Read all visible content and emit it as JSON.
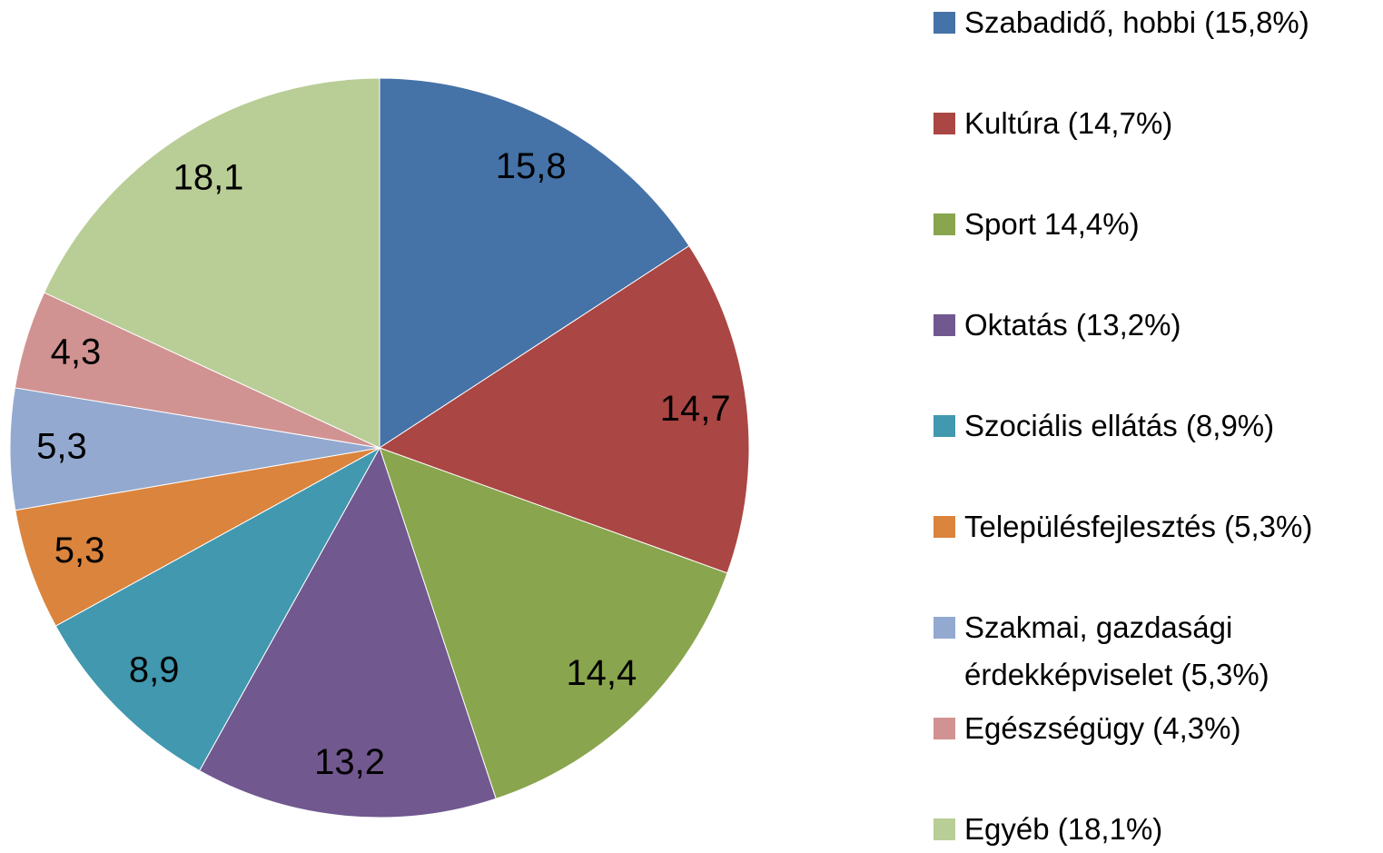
{
  "chart_data": {
    "type": "pie",
    "categories": [
      "Szabadidő, hobbi (15,8%)",
      "Kultúra (14,7%)",
      "Sport 14,4%)",
      "Oktatás (13,2%)",
      "Szociális ellátás (8,9%)",
      "Településfejlesztés (5,3%)",
      "Szakmai, gazdasági érdekképviselet (5,3%)",
      "Egészségügy (4,3%)",
      "Egyéb (18,1%)"
    ],
    "values": [
      15.8,
      14.7,
      14.4,
      13.2,
      8.9,
      5.3,
      5.3,
      4.3,
      18.1
    ],
    "value_labels": [
      "15,8",
      "14,7",
      "14,4",
      "13,2",
      "8,9",
      "5,3",
      "5,3",
      "4,3",
      "18,1"
    ],
    "colors": [
      "#4572a7",
      "#aa4643",
      "#89a54e",
      "#71588f",
      "#4198af",
      "#db843d",
      "#93a9cf",
      "#d19392",
      "#b9cd96"
    ],
    "legend": "right"
  }
}
